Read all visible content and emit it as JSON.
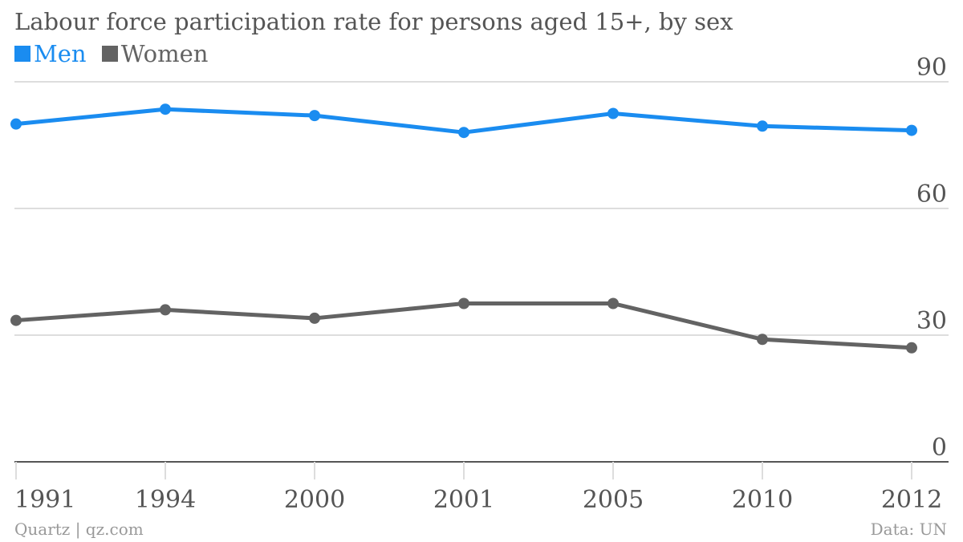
{
  "footer": {
    "source_left": "Quartz | qz.com",
    "source_right": "Data: UN"
  },
  "colors": {
    "men": "#1a8cf0",
    "women": "#636363",
    "grid": "#dddddd",
    "axis": "#555555",
    "tick_text": "#555555"
  },
  "chart_data": {
    "type": "line",
    "title": "Labour force participation rate for persons aged 15+, by sex",
    "categories": [
      "1991",
      "1994",
      "2000",
      "2001",
      "2005",
      "2010",
      "2012"
    ],
    "series": [
      {
        "name": "Men",
        "values": [
          80.0,
          83.5,
          82.0,
          78.0,
          82.5,
          79.5,
          78.5
        ]
      },
      {
        "name": "Women",
        "values": [
          33.5,
          36.0,
          34.0,
          37.5,
          37.5,
          29.0,
          27.0
        ]
      }
    ],
    "yticks": [
      "0",
      "30",
      "60",
      "90"
    ],
    "ylim": [
      0,
      90
    ],
    "grid": true,
    "legend": "top-left",
    "xlabel": "",
    "ylabel": ""
  }
}
